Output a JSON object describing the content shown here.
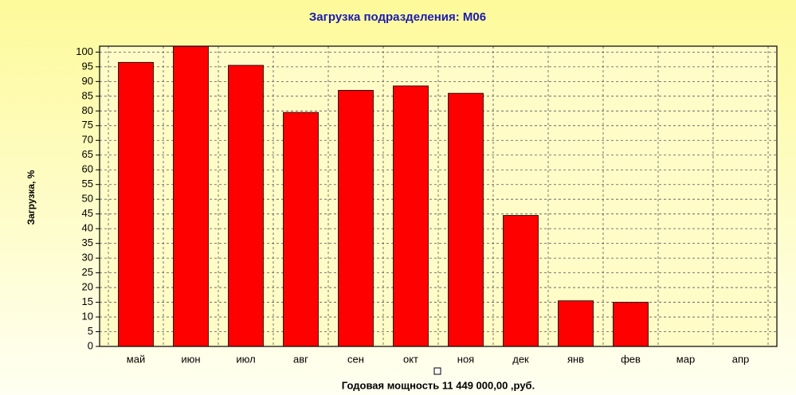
{
  "chart_data": {
    "type": "bar",
    "title": "Загрузка подразделения: М06",
    "ylabel": "Загрузка, %",
    "annotation": "Годовая мощность 11 449 000,00 ,руб.",
    "categories": [
      "май",
      "июн",
      "июл",
      "авг",
      "сен",
      "окт",
      "ноя",
      "дек",
      "янв",
      "фев",
      "мар",
      "апр"
    ],
    "values": [
      96.5,
      102,
      95.5,
      79.5,
      87,
      88.5,
      86,
      44.5,
      15.5,
      15,
      0,
      0
    ],
    "color": "#ff0000",
    "ylim": [
      0,
      102
    ],
    "yticks": [
      0,
      5,
      10,
      15,
      20,
      25,
      30,
      35,
      40,
      45,
      50,
      55,
      60,
      65,
      70,
      75,
      80,
      85,
      90,
      95,
      100
    ],
    "grid": true
  }
}
